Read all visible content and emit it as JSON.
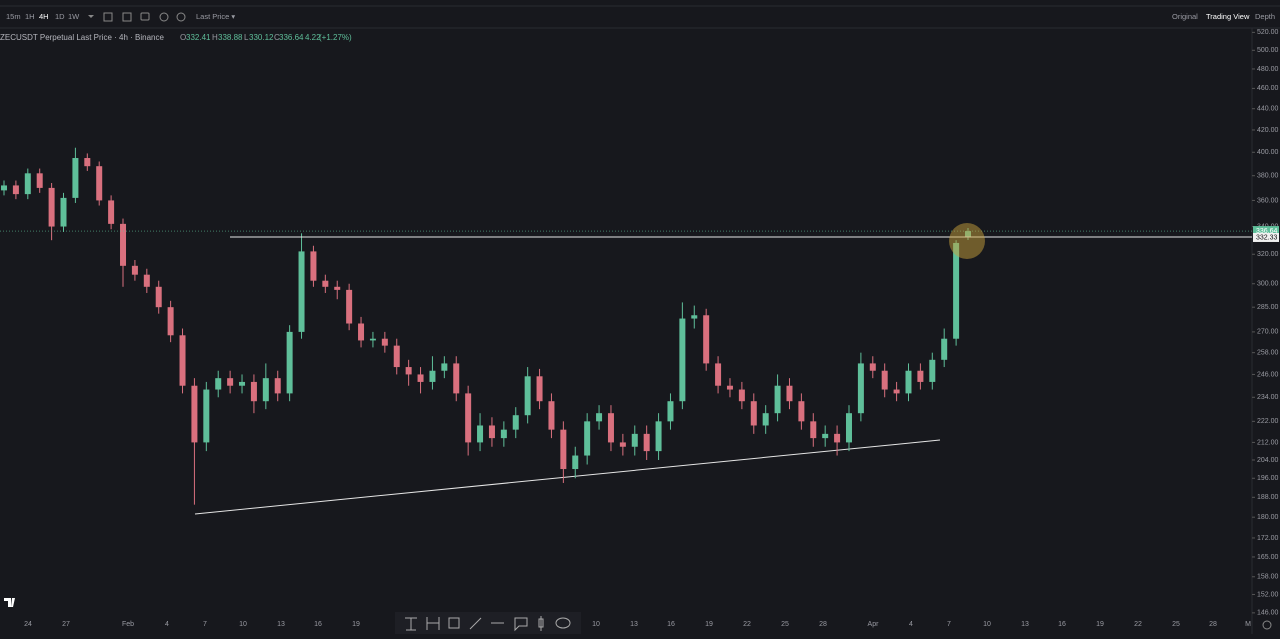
{
  "toolbar": {
    "intervals": [
      "15m",
      "1H",
      "4H",
      "1D",
      "1W"
    ],
    "price_type": "Last Price ▾",
    "views": [
      "Original",
      "Trading View",
      "Depth"
    ]
  },
  "chart_data": {
    "type": "candlestick",
    "title": "ZECUSDT Perpetual Last Price · 4h · Binance",
    "legend_labels": [
      "O",
      "H",
      "L",
      "C"
    ],
    "change": 4.22,
    "change_pct_label": "(+1.27%)",
    "up_color": "#5fbf9a",
    "down_color": "#d9707e",
    "log_scale": true,
    "open": [
      368,
      372,
      365,
      382,
      370,
      340,
      362,
      395,
      388,
      360,
      342,
      312,
      306,
      298,
      285,
      268,
      240,
      212,
      238,
      244,
      240,
      242,
      232,
      244,
      236,
      270,
      322,
      302,
      298,
      296,
      275,
      265,
      266,
      262,
      250,
      246,
      242,
      248,
      252,
      236,
      212,
      220,
      214,
      218,
      225,
      245,
      232,
      218,
      200,
      206,
      222,
      226,
      212,
      210,
      216,
      208,
      222,
      232,
      278,
      280,
      252,
      240,
      238,
      232,
      220,
      226,
      240,
      232,
      222,
      214,
      216,
      212,
      226,
      252,
      248,
      238,
      236,
      248,
      242,
      254,
      266,
      332.41
    ],
    "high": [
      376,
      376,
      386,
      386,
      374,
      366,
      404,
      399,
      392,
      364,
      346,
      316,
      310,
      302,
      289,
      272,
      244,
      242,
      248,
      248,
      246,
      246,
      252,
      248,
      274,
      335,
      326,
      306,
      302,
      300,
      279,
      270,
      270,
      266,
      254,
      250,
      256,
      256,
      256,
      240,
      226,
      224,
      222,
      229,
      250,
      249,
      236,
      222,
      210,
      226,
      230,
      230,
      216,
      220,
      220,
      226,
      236,
      288,
      286,
      284,
      256,
      244,
      242,
      236,
      230,
      246,
      244,
      236,
      226,
      220,
      220,
      230,
      258,
      256,
      252,
      242,
      252,
      252,
      258,
      272,
      330,
      338.88
    ],
    "low": [
      364,
      361,
      361,
      366,
      330,
      336,
      358,
      384,
      356,
      338,
      298,
      302,
      294,
      281,
      264,
      236,
      185,
      208,
      234,
      236,
      236,
      226,
      228,
      232,
      232,
      266,
      298,
      294,
      290,
      271,
      261,
      261,
      258,
      246,
      240,
      236,
      238,
      244,
      232,
      206,
      208,
      210,
      210,
      214,
      221,
      228,
      214,
      194,
      196,
      202,
      218,
      208,
      206,
      206,
      204,
      204,
      218,
      228,
      272,
      248,
      236,
      234,
      228,
      216,
      216,
      222,
      228,
      218,
      210,
      210,
      206,
      208,
      222,
      244,
      234,
      232,
      232,
      238,
      238,
      250,
      262,
      330.12
    ],
    "close": [
      372,
      365,
      382,
      370,
      340,
      362,
      395,
      388,
      360,
      342,
      312,
      306,
      298,
      285,
      268,
      240,
      212,
      238,
      244,
      240,
      242,
      232,
      244,
      236,
      270,
      322,
      302,
      298,
      296,
      275,
      265,
      266,
      262,
      250,
      246,
      242,
      248,
      252,
      236,
      212,
      220,
      214,
      218,
      225,
      245,
      232,
      218,
      200,
      206,
      222,
      226,
      212,
      210,
      216,
      208,
      222,
      232,
      278,
      280,
      252,
      240,
      238,
      232,
      220,
      226,
      240,
      232,
      222,
      214,
      216,
      212,
      226,
      252,
      248,
      238,
      236,
      248,
      242,
      254,
      266,
      328,
      336.64
    ],
    "hline": 332.33,
    "hline_label": "332.33",
    "ylim": [
      145,
      525
    ],
    "yticks": [
      {
        "value": 520,
        "label": "520.00"
      },
      {
        "value": 500,
        "label": "500.00"
      },
      {
        "value": 480,
        "label": "480.00"
      },
      {
        "value": 460,
        "label": "460.00"
      },
      {
        "value": 440,
        "label": "440.00"
      },
      {
        "value": 420,
        "label": "420.00"
      },
      {
        "value": 400,
        "label": "400.00"
      },
      {
        "value": 380,
        "label": "380.00"
      },
      {
        "value": 360,
        "label": "360.00"
      },
      {
        "value": 340,
        "label": "340.00"
      },
      {
        "value": 320,
        "label": "320.00"
      },
      {
        "value": 300,
        "label": "300.00"
      },
      {
        "value": 285,
        "label": "285.00"
      },
      {
        "value": 270,
        "label": "270.00"
      },
      {
        "value": 258,
        "label": "258.00"
      },
      {
        "value": 246,
        "label": "246.00"
      },
      {
        "value": 234,
        "label": "234.00"
      },
      {
        "value": 222,
        "label": "222.00"
      },
      {
        "value": 212,
        "label": "212.00"
      },
      {
        "value": 204,
        "label": "204.00"
      },
      {
        "value": 196,
        "label": "196.00"
      },
      {
        "value": 188,
        "label": "188.00"
      },
      {
        "value": 180,
        "label": "180.00"
      },
      {
        "value": 172,
        "label": "172.00"
      },
      {
        "value": 165,
        "label": "165.00"
      },
      {
        "value": 158,
        "label": "158.00"
      },
      {
        "value": 152,
        "label": "152.00"
      },
      {
        "value": 146,
        "label": "146.00"
      }
    ],
    "x_tick_labels": [
      "24",
      "27",
      "Feb",
      "4",
      "7",
      "10",
      "13",
      "16",
      "19",
      "10",
      "13",
      "16",
      "19",
      "22",
      "25",
      "28",
      "Apr",
      "4",
      "7",
      "10",
      "13",
      "16",
      "19",
      "22",
      "25",
      "28",
      "M"
    ]
  }
}
